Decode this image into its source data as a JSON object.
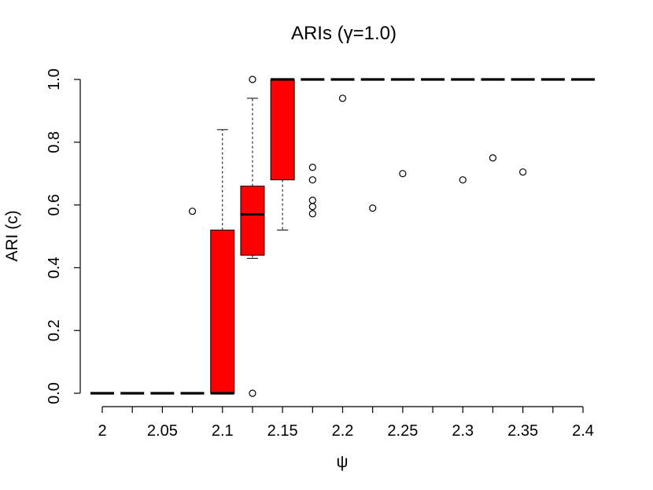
{
  "chart_data": {
    "type": "boxplot",
    "title": "ARIs (γ=1.0)",
    "xlabel": "ψ",
    "ylabel": "ARI (c)",
    "ylim": [
      0.0,
      1.0
    ],
    "y_ticks": [
      0.0,
      0.2,
      0.4,
      0.6,
      0.8,
      1.0
    ],
    "y_tick_labels": [
      "0.0",
      "0.2",
      "0.4",
      "0.6",
      "0.8",
      "1.0"
    ],
    "x_ticks": [
      2.0,
      2.025,
      2.05,
      2.075,
      2.1,
      2.125,
      2.15,
      2.175,
      2.2,
      2.225,
      2.25,
      2.275,
      2.3,
      2.325,
      2.35,
      2.375,
      2.4
    ],
    "x_tick_labels": [
      {
        "x": 2.0,
        "label": "2"
      },
      {
        "x": 2.05,
        "label": "2.05"
      },
      {
        "x": 2.1,
        "label": "2.1"
      },
      {
        "x": 2.15,
        "label": "2.15"
      },
      {
        "x": 2.2,
        "label": "2.2"
      },
      {
        "x": 2.25,
        "label": "2.25"
      },
      {
        "x": 2.3,
        "label": "2.3"
      },
      {
        "x": 2.35,
        "label": "2.35"
      },
      {
        "x": 2.4,
        "label": "2.4"
      }
    ],
    "box_color": "#ff0000",
    "grid": false,
    "groups": [
      {
        "x": 2.0,
        "median": 0.0,
        "q1": 0.0,
        "q3": 0.0,
        "whisker_low": 0.0,
        "whisker_high": 0.0,
        "outliers": []
      },
      {
        "x": 2.025,
        "median": 0.0,
        "q1": 0.0,
        "q3": 0.0,
        "whisker_low": 0.0,
        "whisker_high": 0.0,
        "outliers": []
      },
      {
        "x": 2.05,
        "median": 0.0,
        "q1": 0.0,
        "q3": 0.0,
        "whisker_low": 0.0,
        "whisker_high": 0.0,
        "outliers": []
      },
      {
        "x": 2.075,
        "median": 0.0,
        "q1": 0.0,
        "q3": 0.0,
        "whisker_low": 0.0,
        "whisker_high": 0.0,
        "outliers": [
          0.58
        ]
      },
      {
        "x": 2.1,
        "median": 0.0,
        "q1": 0.0,
        "q3": 0.52,
        "whisker_low": 0.0,
        "whisker_high": 0.84,
        "outliers": []
      },
      {
        "x": 2.125,
        "median": 0.57,
        "q1": 0.44,
        "q3": 0.66,
        "whisker_low": 0.43,
        "whisker_high": 0.94,
        "outliers": [
          1.0,
          0.0
        ]
      },
      {
        "x": 2.15,
        "median": 1.0,
        "q1": 0.68,
        "q3": 1.0,
        "whisker_low": 0.52,
        "whisker_high": 1.0,
        "outliers": []
      },
      {
        "x": 2.175,
        "median": 1.0,
        "q1": 1.0,
        "q3": 1.0,
        "whisker_low": 1.0,
        "whisker_high": 1.0,
        "outliers": [
          0.72,
          0.68,
          0.615,
          0.595,
          0.572
        ]
      },
      {
        "x": 2.2,
        "median": 1.0,
        "q1": 1.0,
        "q3": 1.0,
        "whisker_low": 1.0,
        "whisker_high": 1.0,
        "outliers": [
          0.94
        ]
      },
      {
        "x": 2.225,
        "median": 1.0,
        "q1": 1.0,
        "q3": 1.0,
        "whisker_low": 1.0,
        "whisker_high": 1.0,
        "outliers": [
          0.59
        ]
      },
      {
        "x": 2.25,
        "median": 1.0,
        "q1": 1.0,
        "q3": 1.0,
        "whisker_low": 1.0,
        "whisker_high": 1.0,
        "outliers": [
          0.7
        ]
      },
      {
        "x": 2.275,
        "median": 1.0,
        "q1": 1.0,
        "q3": 1.0,
        "whisker_low": 1.0,
        "whisker_high": 1.0,
        "outliers": []
      },
      {
        "x": 2.3,
        "median": 1.0,
        "q1": 1.0,
        "q3": 1.0,
        "whisker_low": 1.0,
        "whisker_high": 1.0,
        "outliers": [
          0.68
        ]
      },
      {
        "x": 2.325,
        "median": 1.0,
        "q1": 1.0,
        "q3": 1.0,
        "whisker_low": 1.0,
        "whisker_high": 1.0,
        "outliers": [
          0.75
        ]
      },
      {
        "x": 2.35,
        "median": 1.0,
        "q1": 1.0,
        "q3": 1.0,
        "whisker_low": 1.0,
        "whisker_high": 1.0,
        "outliers": [
          0.705
        ]
      },
      {
        "x": 2.375,
        "median": 1.0,
        "q1": 1.0,
        "q3": 1.0,
        "whisker_low": 1.0,
        "whisker_high": 1.0,
        "outliers": []
      },
      {
        "x": 2.4,
        "median": 1.0,
        "q1": 1.0,
        "q3": 1.0,
        "whisker_low": 1.0,
        "whisker_high": 1.0,
        "outliers": []
      }
    ]
  }
}
